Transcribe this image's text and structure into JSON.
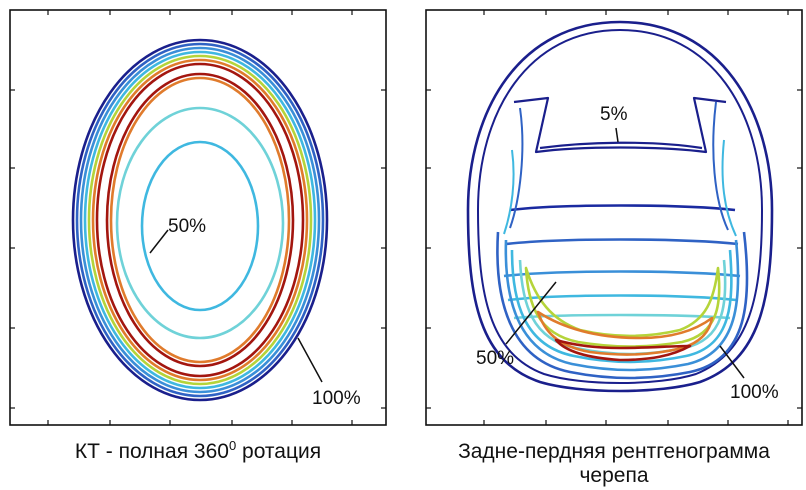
{
  "left_panel": {
    "caption_prefix": "КТ - полная 360",
    "caption_superscript": "0",
    "caption_suffix": " ротация",
    "label_inner": "50%",
    "label_outer": "100%"
  },
  "right_panel": {
    "caption_line1": "Задне-пердняя рентгенограмма",
    "caption_line2": "черепа",
    "label_top": "5%",
    "label_mid": "50%",
    "label_outer": "100%"
  },
  "colors": {
    "navy": "#1a1f8c",
    "blue": "#2f62c4",
    "mid_blue": "#3a8fd8",
    "cyan": "#3fb8e0",
    "light_cyan": "#6fd2d8",
    "yellow_green": "#b5d43a",
    "orange": "#e07b2c",
    "dark_red": "#a3160f"
  }
}
